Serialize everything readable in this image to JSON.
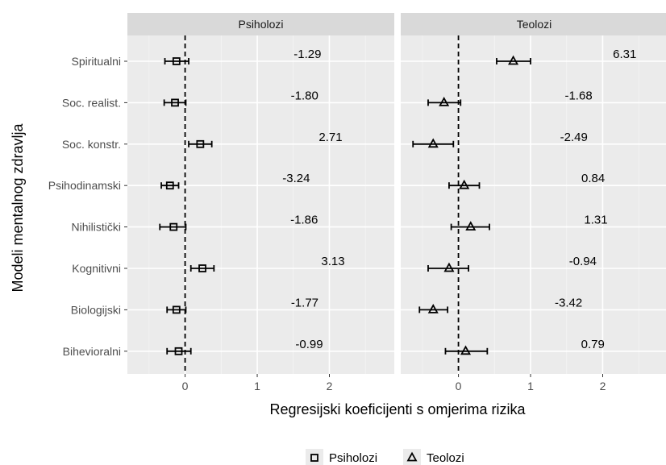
{
  "chart_data": {
    "type": "forest",
    "xlabel": "Regresijski koeficijenti s omjerima rizika",
    "ylabel": "Modeli mentalnog zdravlja",
    "xlim": [
      -0.8,
      2.9
    ],
    "x_ticks": [
      0,
      1,
      2
    ],
    "x_tick_labels": [
      "0",
      "1",
      "2"
    ],
    "reference_line_x": 0,
    "grid": true,
    "legend_position": "bottom",
    "categories": [
      "Spiritualni",
      "Soc. realist.",
      "Soc. konstr.",
      "Psihodinamski",
      "Nihilistički",
      "Kognitivni",
      "Biologijski",
      "Bihevioralni"
    ],
    "panels": [
      {
        "name": "Psiholozi",
        "marker": "square",
        "estimates": [
          -0.12,
          -0.14,
          0.21,
          -0.21,
          -0.16,
          0.24,
          -0.12,
          -0.09
        ],
        "ci_low": [
          -0.28,
          -0.29,
          0.05,
          -0.33,
          -0.35,
          0.08,
          -0.25,
          -0.25
        ],
        "ci_high": [
          0.05,
          0.01,
          0.37,
          -0.09,
          0.01,
          0.4,
          0.01,
          0.08
        ],
        "annotations": [
          "-1.29",
          "-1.80",
          "2.71",
          "-3.24",
          "-1.86",
          "3.13",
          "-1.77",
          "-0.99"
        ]
      },
      {
        "name": "Teolozi",
        "marker": "triangle",
        "estimates": [
          0.76,
          -0.2,
          -0.35,
          0.08,
          0.17,
          -0.13,
          -0.35,
          0.1
        ],
        "ci_low": [
          0.53,
          -0.42,
          -0.63,
          -0.13,
          -0.1,
          -0.42,
          -0.54,
          -0.18
        ],
        "ci_high": [
          1.0,
          0.03,
          -0.07,
          0.29,
          0.43,
          0.14,
          -0.15,
          0.4
        ],
        "annotations": [
          "6.31",
          "-1.68",
          "-2.49",
          "0.84",
          "1.31",
          "-0.94",
          "-3.42",
          "0.79"
        ]
      }
    ],
    "legend": [
      "Psiholozi",
      "Teolozi"
    ]
  }
}
